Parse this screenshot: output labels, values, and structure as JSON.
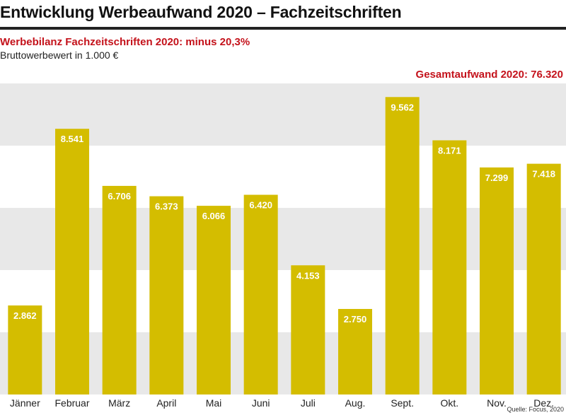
{
  "header": {
    "title": "Entwicklung Werbeaufwand 2020 – Fachzeitschriften",
    "subtitle": "Werbebilanz Fachzeitschriften 2020: minus 20,3%",
    "unit": "Bruttowerbewert in 1.000 €",
    "total": "Gesamtaufwand 2020: 76.320",
    "source": "Quelle: Focus, 2020"
  },
  "colors": {
    "bar": "#d4bd00",
    "band": "#e8e8e8",
    "accent": "#c4121b"
  },
  "chart_data": {
    "type": "bar",
    "title": "Entwicklung Werbeaufwand 2020 – Fachzeitschriften",
    "ylabel": "Bruttowerbewert in 1.000 €",
    "xlabel": "",
    "categories": [
      "Jänner",
      "Februar",
      "März",
      "April",
      "Mai",
      "Juni",
      "Juli",
      "Aug.",
      "Sept.",
      "Okt.",
      "Nov.",
      "Dez."
    ],
    "values": [
      2862,
      8541,
      6706,
      6373,
      6066,
      6420,
      4153,
      2750,
      9562,
      8171,
      7299,
      7418
    ],
    "labels": [
      "2.862",
      "8.541",
      "6.706",
      "6.373",
      "6.066",
      "6.420",
      "4.153",
      "2.750",
      "9.562",
      "8.171",
      "7.299",
      "7.418"
    ],
    "ylim": [
      0,
      10000
    ],
    "grid": "alternating horizontal bands"
  }
}
